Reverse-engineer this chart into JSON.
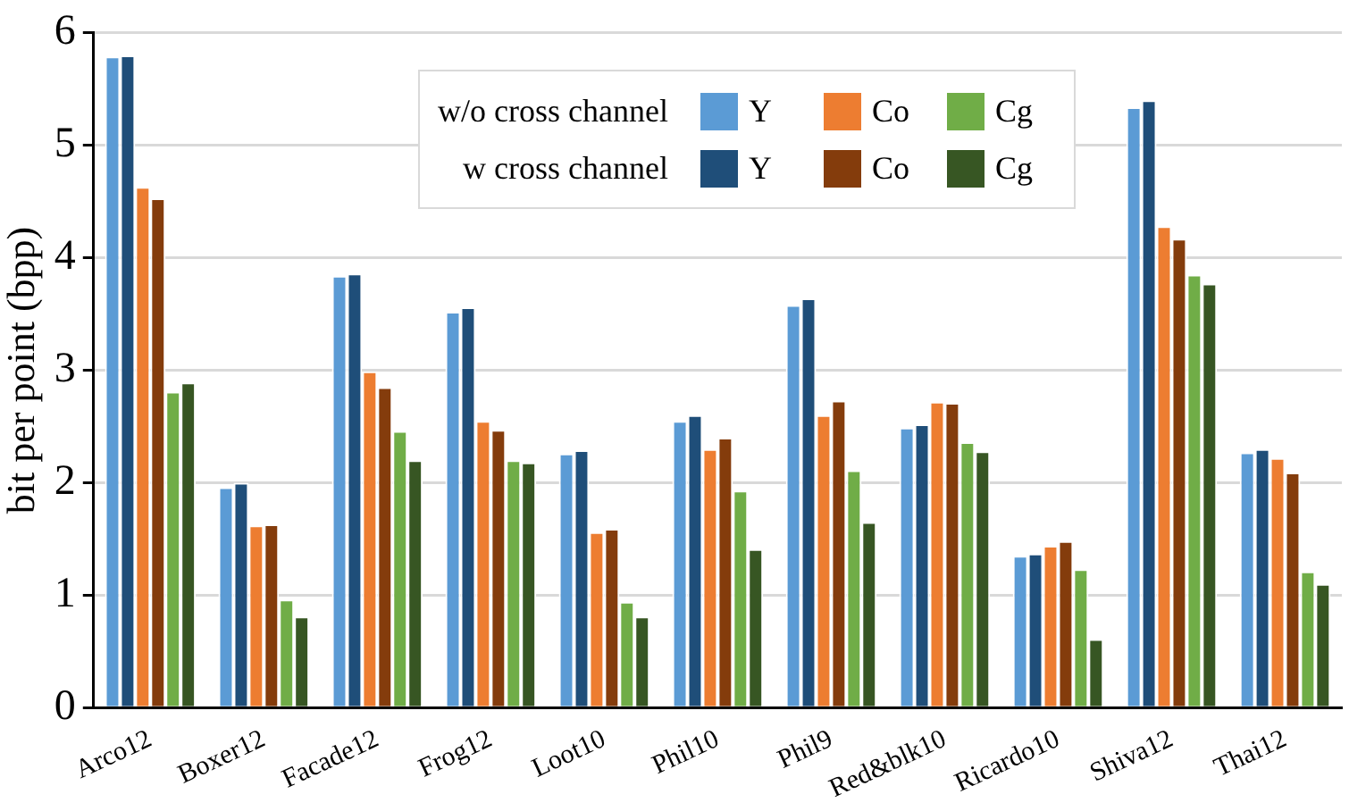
{
  "chart_data": {
    "type": "bar",
    "ylabel": "bit per point (bpp)",
    "categories": [
      "Arco12",
      "Boxer12",
      "Facade12",
      "Frog12",
      "Loot10",
      "Phil10",
      "Phil9",
      "Red&blk10",
      "Ricardo10",
      "Shiva12",
      "Thai12"
    ],
    "series": [
      {
        "name": "Y",
        "color": "#5b9bd5",
        "values": [
          5.79,
          1.96,
          3.84,
          3.52,
          2.26,
          2.55,
          3.58,
          2.49,
          1.35,
          5.34,
          2.27
        ]
      },
      {
        "name": "Y",
        "color": "#1f4e79",
        "values": [
          5.8,
          2.0,
          3.86,
          3.56,
          2.29,
          2.6,
          3.64,
          2.52,
          1.37,
          5.4,
          2.3
        ]
      },
      {
        "name": "Co",
        "color": "#ed7d31",
        "values": [
          4.63,
          1.62,
          2.99,
          2.55,
          1.56,
          2.3,
          2.6,
          2.72,
          1.44,
          4.28,
          2.22
        ]
      },
      {
        "name": "Co",
        "color": "#843c0c",
        "values": [
          4.53,
          1.63,
          2.85,
          2.47,
          1.59,
          2.4,
          2.73,
          2.71,
          1.48,
          4.17,
          2.09
        ]
      },
      {
        "name": "Cg",
        "color": "#70ad47",
        "values": [
          2.81,
          0.96,
          2.46,
          2.2,
          0.94,
          1.93,
          2.11,
          2.36,
          1.23,
          3.85,
          1.21
        ]
      },
      {
        "name": "Cg",
        "color": "#375623",
        "values": [
          2.89,
          0.81,
          2.2,
          2.18,
          0.81,
          1.41,
          1.65,
          2.28,
          0.61,
          3.77,
          1.1
        ]
      }
    ],
    "annotations": [
      "w/o cross channel",
      "w cross channel"
    ],
    "ylim": [
      0,
      6
    ],
    "yticks": [
      0,
      1,
      2,
      3,
      4,
      5,
      6
    ],
    "grid": "y",
    "legend": "top"
  }
}
